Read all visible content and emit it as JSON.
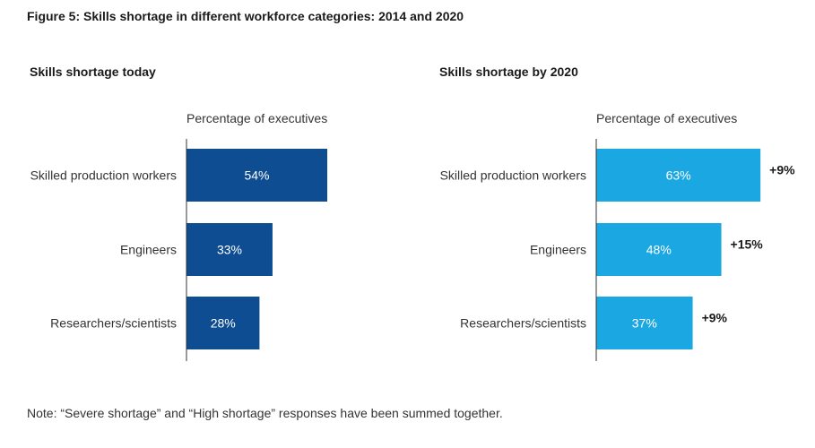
{
  "figure_title": "Figure 5: Skills shortage in different workforce categories: 2014 and 2020",
  "note": "Note: “Severe shortage” and “High shortage” responses have been summed together.",
  "colors": {
    "today_bar": "#0e4d92",
    "future_bar": "#1ba8e2",
    "axis": "#333333"
  },
  "chart_data": [
    {
      "type": "bar",
      "orientation": "horizontal",
      "title": "Skills shortage today",
      "xlabel": "Percentage of executives",
      "categories": [
        "Skilled production workers",
        "Engineers",
        "Researchers/scientists"
      ],
      "values": [
        54,
        33,
        28
      ],
      "value_labels": [
        "54%",
        "33%",
        "28%"
      ],
      "xlim": [
        0,
        100
      ]
    },
    {
      "type": "bar",
      "orientation": "horizontal",
      "title": "Skills shortage by 2020",
      "xlabel": "Percentage of executives",
      "categories": [
        "Skilled production workers",
        "Engineers",
        "Researchers/scientists"
      ],
      "values": [
        63,
        48,
        37
      ],
      "value_labels": [
        "63%",
        "48%",
        "37%"
      ],
      "change_labels": [
        "+9%",
        "+15%",
        "+9%"
      ],
      "xlim": [
        0,
        100
      ]
    }
  ]
}
